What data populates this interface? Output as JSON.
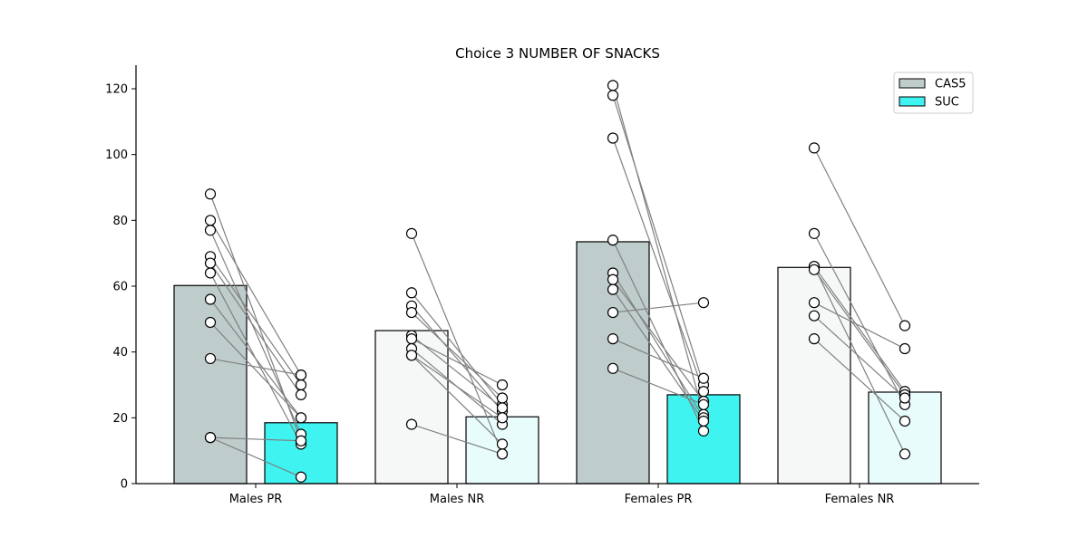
{
  "chart_data": {
    "type": "bar",
    "title": "Choice  3 NUMBER OF SNACKS",
    "xlabel": "",
    "ylabel": "",
    "ylim": [
      0,
      127
    ],
    "yticks": [
      0,
      20,
      40,
      60,
      80,
      100,
      120
    ],
    "categories": [
      "Males PR",
      "Males NR",
      "Females PR",
      "Females NR"
    ],
    "series": [
      {
        "name": "CAS5",
        "values": [
          60.2,
          46.5,
          73.5,
          65.7
        ]
      },
      {
        "name": "SUC",
        "values": [
          18.5,
          20.3,
          27.0,
          27.8
        ]
      }
    ],
    "points": [
      {
        "category": "Males PR",
        "pairs": [
          [
            88,
            13
          ],
          [
            80,
            33
          ],
          [
            77,
            15
          ],
          [
            69,
            30
          ],
          [
            67,
            27
          ],
          [
            64,
            12
          ],
          [
            56,
            20
          ],
          [
            49,
            20
          ],
          [
            38,
            33
          ],
          [
            14,
            13
          ],
          [
            14,
            2
          ]
        ]
      },
      {
        "category": "Males NR",
        "pairs": [
          [
            76,
            9
          ],
          [
            58,
            24
          ],
          [
            54,
            22
          ],
          [
            52,
            26
          ],
          [
            45,
            23
          ],
          [
            44,
            30
          ],
          [
            41,
            18
          ],
          [
            39,
            20
          ],
          [
            39,
            12
          ],
          [
            18,
            9
          ]
        ]
      },
      {
        "category": "Females PR",
        "pairs": [
          [
            121,
            21
          ],
          [
            118,
            30
          ],
          [
            105,
            28
          ],
          [
            74,
            16
          ],
          [
            64,
            20
          ],
          [
            62,
            25
          ],
          [
            59,
            19
          ],
          [
            52,
            55
          ],
          [
            44,
            32
          ],
          [
            35,
            24
          ]
        ]
      },
      {
        "category": "Females NR",
        "pairs": [
          [
            102,
            48
          ],
          [
            76,
            24
          ],
          [
            66,
            28
          ],
          [
            66,
            9
          ],
          [
            65,
            27
          ],
          [
            55,
            41
          ],
          [
            51,
            26
          ],
          [
            44,
            19
          ]
        ]
      }
    ],
    "bar_colors": {
      "CAS5": [
        "#bfcccc",
        "#f6f8f8",
        "#bfcccc",
        "#f6f8f8"
      ],
      "SUC": [
        "#3ef3f0",
        "#e8fcfc",
        "#3ef3f0",
        "#e8fcfc"
      ]
    },
    "legend": {
      "placement": "top-right",
      "entries": [
        {
          "label": "CAS5",
          "color": "#bfcccc"
        },
        {
          "label": "SUC",
          "color": "#3ef3f0"
        }
      ]
    },
    "line_color": "#808080",
    "grid": false
  }
}
